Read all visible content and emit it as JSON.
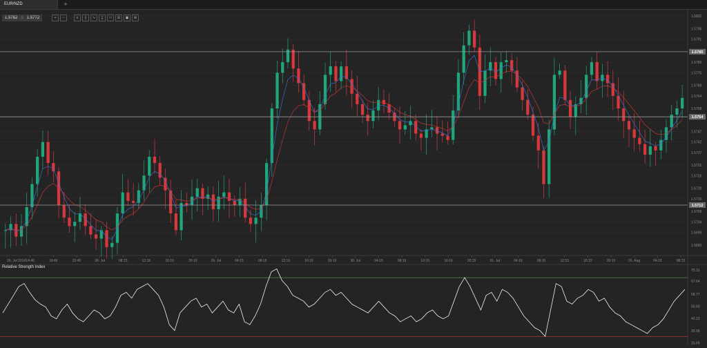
{
  "tabs": [
    {
      "label": "EUR/NZD"
    }
  ],
  "add_tab_symbol": "+",
  "price_box": {
    "bid": "1.5762",
    "separator": "≡",
    "ask": "1.5772"
  },
  "toolbar": [
    {
      "name": "zoom-in-icon",
      "glyph": "+"
    },
    {
      "name": "zoom-out-icon",
      "glyph": "−"
    },
    {
      "name": "bar-chart-icon",
      "glyph": "≡"
    },
    {
      "name": "candle-chart-icon",
      "glyph": "┇"
    },
    {
      "name": "line-chart-icon",
      "glyph": "∿"
    },
    {
      "name": "indicator-icon",
      "glyph": "∑"
    },
    {
      "name": "draw-tools-icon",
      "glyph": "□"
    },
    {
      "name": "object-list-icon",
      "glyph": "☰"
    },
    {
      "name": "template-icon",
      "glyph": "▣"
    },
    {
      "name": "settings-icon",
      "glyph": "⚙"
    }
  ],
  "chart_data": [
    {
      "type": "candlestick",
      "title": "EUR/NZD",
      "y_ticks": [
        "1.5802",
        "1.5796",
        "1.5791",
        "1.5785",
        "1.5780",
        "1.5775",
        "1.5769",
        "1.5764",
        "1.5758",
        "1.5754",
        "1.5747",
        "1.5742",
        "1.5737",
        "1.5731",
        "1.5726",
        "1.5720",
        "1.5715",
        "1.5712",
        "1.5709",
        "1.5704",
        "1.5699",
        "1.5693"
      ],
      "ylim": [
        1.5688,
        1.5805
      ],
      "x_ticks": [
        "25. Jul 2014",
        "14:45",
        "18:45",
        "22:45",
        "28. Jul",
        "08:15",
        "12:15",
        "16:15",
        "20:15",
        "29. Jul",
        "04:15",
        "08:15",
        "12:15",
        "16:15",
        "20:15",
        "30. Jul",
        "04:15",
        "08:15",
        "12:15",
        "16:15",
        "20:15",
        "31. Jul",
        "04:15",
        "08:15",
        "12:15",
        "16:15",
        "20:15",
        "01. Aug",
        "04:15",
        "08:15"
      ],
      "horizontal_lines": [
        {
          "value": 1.5785,
          "label": "1.5785"
        },
        {
          "value": 1.5754,
          "label": "1.5754"
        },
        {
          "value": 1.5712,
          "label": "1.5712"
        }
      ],
      "series": [
        {
          "name": "",
          "values": [
            1.57,
            1.5703,
            1.5697,
            1.5702,
            1.5711,
            1.5722,
            1.5735,
            1.5742,
            1.5732,
            1.5728,
            1.5712,
            1.5706,
            1.5702,
            1.5704,
            1.5708,
            1.5702,
            1.5698,
            1.5696,
            1.57,
            1.5692,
            1.5694,
            1.5708,
            1.5718,
            1.5714,
            1.5713,
            1.5719,
            1.5726,
            1.5735,
            1.5732,
            1.5725,
            1.5719,
            1.5708,
            1.57,
            1.5713,
            1.5712,
            1.5716,
            1.572,
            1.5715,
            1.5717,
            1.571,
            1.5716,
            1.5718,
            1.5714,
            1.5712,
            1.5715,
            1.5706,
            1.5703,
            1.5706,
            1.5712,
            1.5732,
            1.5758,
            1.5775,
            1.578,
            1.5786,
            1.5777,
            1.577,
            1.5762,
            1.5752,
            1.5748,
            1.576,
            1.5774,
            1.5778,
            1.5771,
            1.5778,
            1.5772,
            1.5765,
            1.576,
            1.5755,
            1.5752,
            1.5757,
            1.5762,
            1.576,
            1.5756,
            1.5752,
            1.5748,
            1.575,
            1.5752,
            1.5746,
            1.5744,
            1.5748,
            1.5749,
            1.5746,
            1.5745,
            1.5743,
            1.5757,
            1.5775,
            1.5788,
            1.5795,
            1.5787,
            1.5764,
            1.5776,
            1.578,
            1.5772,
            1.578,
            1.5781,
            1.5776,
            1.5768,
            1.5762,
            1.5755,
            1.5745,
            1.5738,
            1.5722,
            1.5748,
            1.5774,
            1.5776,
            1.5762,
            1.5754,
            1.576,
            1.5763,
            1.5774,
            1.578,
            1.5771,
            1.5774,
            1.577,
            1.5764,
            1.5758,
            1.5752,
            1.5748,
            1.5744,
            1.5741,
            1.5736,
            1.574,
            1.5738,
            1.5743,
            1.5749,
            1.5755,
            1.5758,
            1.5763
          ]
        }
      ]
    },
    {
      "type": "line",
      "title": "Relative Strength Index",
      "y_ticks": [
        "75.31",
        "67.64",
        "58.77",
        "50.50",
        "42.23",
        "33.96",
        "25.69"
      ],
      "ylim": [
        24.0,
        79.0
      ],
      "levels": [
        70,
        30
      ],
      "series": [
        {
          "name": "",
          "values": [
            46,
            52,
            58,
            64,
            66,
            60,
            55,
            52,
            50,
            44,
            42,
            48,
            52,
            46,
            42,
            40,
            44,
            48,
            46,
            42,
            44,
            50,
            58,
            60,
            56,
            62,
            64,
            66,
            62,
            58,
            50,
            38,
            34,
            46,
            50,
            54,
            56,
            50,
            52,
            46,
            50,
            54,
            48,
            46,
            52,
            40,
            38,
            44,
            52,
            64,
            74,
            76,
            68,
            64,
            58,
            56,
            54,
            50,
            52,
            56,
            60,
            62,
            58,
            60,
            56,
            52,
            50,
            48,
            46,
            50,
            54,
            50,
            46,
            44,
            40,
            42,
            44,
            40,
            42,
            46,
            48,
            44,
            42,
            44,
            54,
            64,
            70,
            64,
            56,
            48,
            58,
            60,
            54,
            62,
            60,
            56,
            50,
            44,
            40,
            36,
            34,
            30,
            48,
            66,
            64,
            54,
            52,
            56,
            58,
            62,
            60,
            54,
            56,
            50,
            46,
            44,
            40,
            38,
            36,
            34,
            32,
            36,
            38,
            42,
            48,
            54,
            58,
            62
          ]
        }
      ]
    }
  ],
  "colors": {
    "background": "#242424",
    "bull_candle": "#1fa67a",
    "bear_candle": "#d6393d",
    "ma_fast": "#3b6fd6",
    "ma_slow": "#c9373a",
    "rsi_line": "#f2f2f2",
    "level_upper": "#5b8a4a",
    "level_lower": "#b23a3a",
    "grid": "#2e2e2e",
    "hline": "#9a9a9a"
  }
}
